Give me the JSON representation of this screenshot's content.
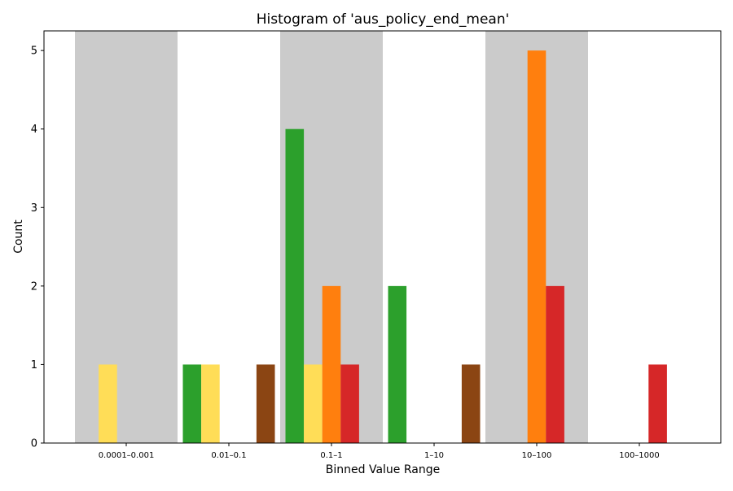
{
  "chart_data": {
    "type": "bar",
    "title": "Histogram of 'aus_policy_end_mean'",
    "xlabel": "Binned Value Range",
    "ylabel": "Count",
    "categories": [
      "0.0001–0.001",
      "0.01–0.1",
      "0.1–1",
      "1–10",
      "10–100",
      "100–1000"
    ],
    "ylim": [
      0,
      5.25
    ],
    "yticks": [
      0,
      1,
      2,
      3,
      4,
      5
    ],
    "shaded_bins": [
      0,
      2,
      4
    ],
    "shade_color": "#cbcbcb",
    "series": [
      {
        "color": "#2ca02c",
        "values": [
          0,
          1,
          4,
          2,
          0,
          0
        ]
      },
      {
        "color": "#ffdd57",
        "values": [
          1,
          1,
          1,
          0,
          0,
          0
        ]
      },
      {
        "color": "#ff7f0e",
        "values": [
          0,
          0,
          2,
          0,
          5,
          0
        ]
      },
      {
        "color": "#d62728",
        "values": [
          0,
          0,
          1,
          0,
          2,
          1
        ]
      },
      {
        "color": "#8b4513",
        "values": [
          0,
          1,
          0,
          1,
          0,
          0
        ]
      }
    ]
  }
}
